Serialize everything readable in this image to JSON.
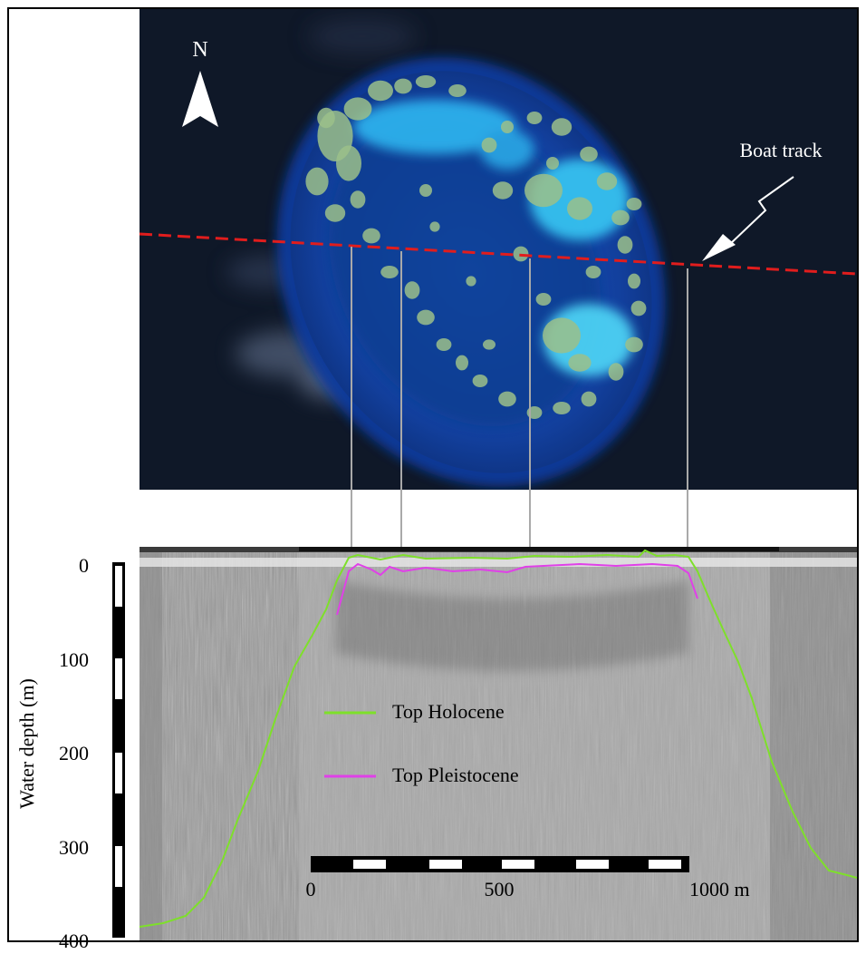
{
  "north_label": "N",
  "boat_track_label": "Boat track",
  "depth_axis": {
    "label": "Water depth (m)",
    "ticks": [
      "0",
      "100",
      "200",
      "300",
      "400"
    ]
  },
  "horizontal_scale": {
    "ticks": [
      "0",
      "500",
      "1000 m"
    ]
  },
  "legend": [
    {
      "label": "Top Holocene",
      "color": "#7ee02a"
    },
    {
      "label": "Top Pleistocene",
      "color": "#e040e8"
    }
  ],
  "colors": {
    "track": "#e11d1d",
    "holocene": "#7ee02a",
    "pleistocene": "#e040e8",
    "satellite_bg": "#0f1828",
    "lagoon": "#1a4fb0",
    "reef": "#9bbf8a"
  }
}
